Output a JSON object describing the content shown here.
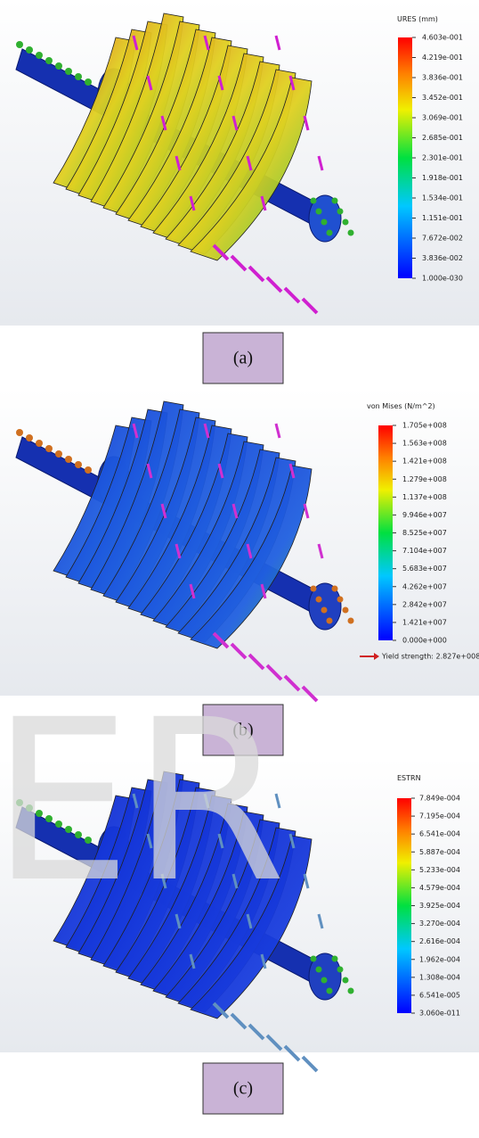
{
  "panels": [
    {
      "legend_title": "URES (mm)",
      "legend_ticks": [
        "4.603e-001",
        "4.219e-001",
        "3.836e-001",
        "3.452e-001",
        "3.069e-001",
        "2.685e-001",
        "2.301e-001",
        "1.918e-001",
        "1.534e-001",
        "1.151e-001",
        "7.672e-002",
        "3.836e-002",
        "1.000e-030"
      ],
      "caption": "(a)"
    },
    {
      "legend_title": "von Mises (N/m^2)",
      "legend_ticks": [
        "1.705e+008",
        "1.563e+008",
        "1.421e+008",
        "1.279e+008",
        "1.137e+008",
        "9.946e+007",
        "8.525e+007",
        "7.104e+007",
        "5.683e+007",
        "4.262e+007",
        "2.842e+007",
        "1.421e+007",
        "0.000e+000"
      ],
      "yield_note": "Yield strength: 2.827e+008",
      "caption": "(b)"
    },
    {
      "legend_title": "ESTRN",
      "legend_ticks": [
        "7.849e-004",
        "7.195e-004",
        "6.541e-004",
        "5.887e-004",
        "5.233e-004",
        "4.579e-004",
        "3.925e-004",
        "3.270e-004",
        "2.616e-004",
        "1.962e-004",
        "1.308e-004",
        "6.541e-005",
        "3.060e-011"
      ],
      "caption": "(c)"
    }
  ],
  "watermark": "ER"
}
